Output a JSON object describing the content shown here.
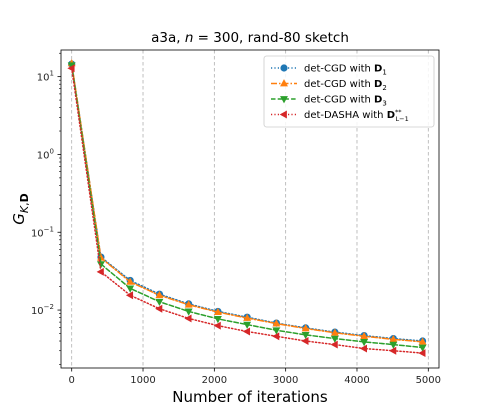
{
  "chart_data": {
    "type": "line",
    "title": "a3a, n = 300, rand-80 sketch",
    "title_parts": {
      "prefix": "a3a, ",
      "var": "n",
      "middle": " = 300, rand-80 sketch"
    },
    "xlabel": "Number of iterations",
    "ylabel": {
      "base": "G",
      "sub_italic": "K",
      "sub_sep": ",",
      "sub_bold": "D"
    },
    "x_scale": "linear",
    "y_scale": "log",
    "xlim": [
      -150,
      5150
    ],
    "ylim": [
      0.0018,
      22
    ],
    "x_ticks": [
      0,
      1000,
      2000,
      3000,
      4000,
      5000
    ],
    "x_tick_labels": [
      "0",
      "1000",
      "2000",
      "3000",
      "4000",
      "5000"
    ],
    "y_ticks": [
      0.01,
      0.1,
      1,
      10
    ],
    "y_tick_labels": [
      {
        "base": "10",
        "exp": "−2"
      },
      {
        "base": "10",
        "exp": "−1"
      },
      {
        "base": "10",
        "exp": "0"
      },
      {
        "base": "10",
        "exp": "1"
      }
    ],
    "grid": "x-dashed",
    "legend_position": "top-right",
    "series": [
      {
        "name": "det-CGD with D1",
        "legend": {
          "prefix": "det-CGD with ",
          "bold": "D",
          "sub": "1",
          "sup": ""
        },
        "color": "#1f77b4",
        "linestyle": "dotted",
        "marker": "circle",
        "x": [
          0,
          410,
          820,
          1230,
          1640,
          2050,
          2460,
          2870,
          3280,
          3690,
          4100,
          4510,
          4920
        ],
        "y": [
          14.5,
          0.048,
          0.024,
          0.016,
          0.012,
          0.0096,
          0.0081,
          0.0068,
          0.0059,
          0.0052,
          0.0047,
          0.0043,
          0.004
        ]
      },
      {
        "name": "det-CGD with D2",
        "legend": {
          "prefix": "det-CGD with ",
          "bold": "D",
          "sub": "2",
          "sup": ""
        },
        "color": "#ff7f0e",
        "linestyle": "dashdot",
        "marker": "triangle-up",
        "x": [
          0,
          410,
          820,
          1230,
          1640,
          2050,
          2460,
          2870,
          3280,
          3690,
          4100,
          4510,
          4920
        ],
        "y": [
          14.8,
          0.047,
          0.023,
          0.0155,
          0.0117,
          0.0094,
          0.0079,
          0.0067,
          0.0058,
          0.0051,
          0.0046,
          0.0042,
          0.0039
        ]
      },
      {
        "name": "det-CGD with D3",
        "legend": {
          "prefix": "det-CGD with ",
          "bold": "D",
          "sub": "3",
          "sup": ""
        },
        "color": "#2ca02c",
        "linestyle": "dashed",
        "marker": "triangle-down",
        "x": [
          0,
          410,
          820,
          1230,
          1640,
          2050,
          2460,
          2870,
          3280,
          3690,
          4100,
          4510,
          4920
        ],
        "y": [
          14.0,
          0.039,
          0.019,
          0.0128,
          0.0096,
          0.0077,
          0.0065,
          0.0055,
          0.0048,
          0.0043,
          0.0039,
          0.0036,
          0.0033
        ]
      },
      {
        "name": "det-DASHA with D**L−1",
        "legend": {
          "prefix": "det-DASHA with ",
          "bold": "D",
          "sub": "L−1",
          "sup": "**"
        },
        "color": "#d62728",
        "linestyle": "dotted",
        "marker": "triangle-left",
        "x": [
          0,
          410,
          820,
          1230,
          1640,
          2050,
          2460,
          2870,
          3280,
          3690,
          4100,
          4510,
          4920
        ],
        "y": [
          12.8,
          0.031,
          0.0155,
          0.0104,
          0.0078,
          0.0063,
          0.0053,
          0.0046,
          0.004,
          0.0036,
          0.0032,
          0.003,
          0.0028
        ]
      }
    ]
  }
}
